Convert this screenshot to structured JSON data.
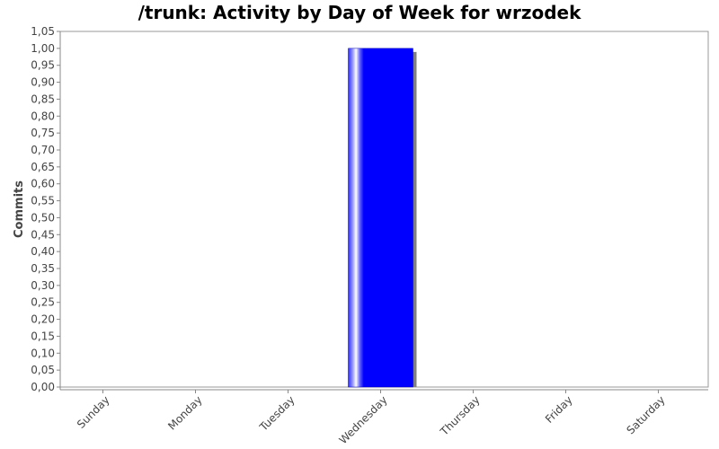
{
  "chart_data": {
    "type": "bar",
    "title": "/trunk: Activity by Day of Week for wrzodek",
    "xlabel": "",
    "ylabel": "Commits",
    "categories": [
      "Sunday",
      "Monday",
      "Tuesday",
      "Wednesday",
      "Thursday",
      "Friday",
      "Saturday"
    ],
    "values": [
      0,
      0,
      0,
      1,
      0,
      0,
      0
    ],
    "ylim": [
      0,
      1.05
    ],
    "y_ticks": [
      "0,00",
      "0,05",
      "0,10",
      "0,15",
      "0,20",
      "0,25",
      "0,30",
      "0,35",
      "0,40",
      "0,45",
      "0,50",
      "0,55",
      "0,60",
      "0,65",
      "0,70",
      "0,75",
      "0,80",
      "0,85",
      "0,90",
      "0,95",
      "1,00",
      "1,05"
    ],
    "grid": false,
    "legend": "none",
    "bar_color": "#0000ff",
    "shadow_color": "#808080",
    "plot_background": "#ffffff"
  }
}
